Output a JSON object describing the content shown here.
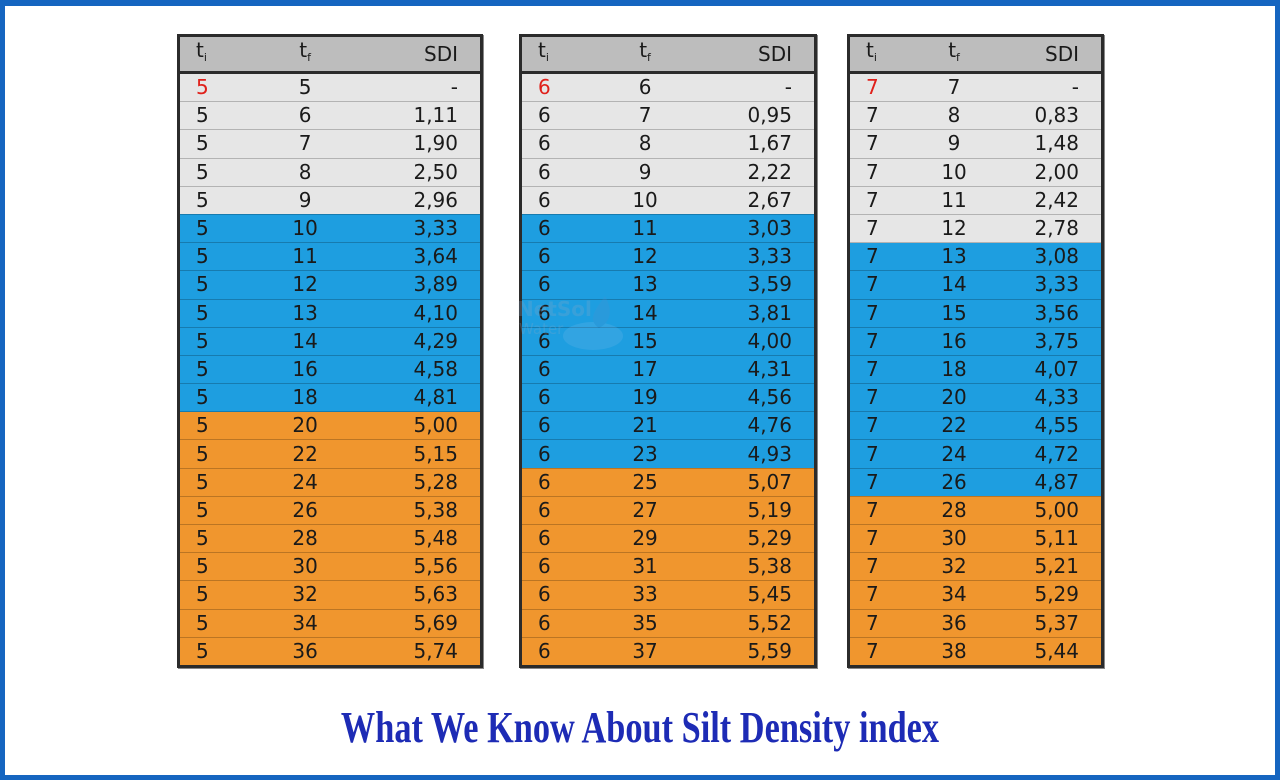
{
  "headers": {
    "ti": "t",
    "ti_sub": "i",
    "tf": "t",
    "tf_sub": "f",
    "sdi": "SDI"
  },
  "colors": {
    "grey": "#e6e6e6",
    "blue": "#1e9ee0",
    "orange": "#f0962e",
    "header": "#bdbdbd",
    "title": "#1d2bb5",
    "frame": "#1565c0",
    "highlight_text": "#e0201a"
  },
  "tables": [
    {
      "rows": [
        {
          "ti": "5",
          "tf": "5",
          "sdi": "-",
          "band": "grey",
          "red": true
        },
        {
          "ti": "5",
          "tf": "6",
          "sdi": "1,11",
          "band": "grey"
        },
        {
          "ti": "5",
          "tf": "7",
          "sdi": "1,90",
          "band": "grey"
        },
        {
          "ti": "5",
          "tf": "8",
          "sdi": "2,50",
          "band": "grey"
        },
        {
          "ti": "5",
          "tf": "9",
          "sdi": "2,96",
          "band": "grey"
        },
        {
          "ti": "5",
          "tf": "10",
          "sdi": "3,33",
          "band": "blue"
        },
        {
          "ti": "5",
          "tf": "11",
          "sdi": "3,64",
          "band": "blue"
        },
        {
          "ti": "5",
          "tf": "12",
          "sdi": "3,89",
          "band": "blue"
        },
        {
          "ti": "5",
          "tf": "13",
          "sdi": "4,10",
          "band": "blue"
        },
        {
          "ti": "5",
          "tf": "14",
          "sdi": "4,29",
          "band": "blue"
        },
        {
          "ti": "5",
          "tf": "16",
          "sdi": "4,58",
          "band": "blue"
        },
        {
          "ti": "5",
          "tf": "18",
          "sdi": "4,81",
          "band": "blue"
        },
        {
          "ti": "5",
          "tf": "20",
          "sdi": "5,00",
          "band": "orange"
        },
        {
          "ti": "5",
          "tf": "22",
          "sdi": "5,15",
          "band": "orange"
        },
        {
          "ti": "5",
          "tf": "24",
          "sdi": "5,28",
          "band": "orange"
        },
        {
          "ti": "5",
          "tf": "26",
          "sdi": "5,38",
          "band": "orange"
        },
        {
          "ti": "5",
          "tf": "28",
          "sdi": "5,48",
          "band": "orange"
        },
        {
          "ti": "5",
          "tf": "30",
          "sdi": "5,56",
          "band": "orange"
        },
        {
          "ti": "5",
          "tf": "32",
          "sdi": "5,63",
          "band": "orange"
        },
        {
          "ti": "5",
          "tf": "34",
          "sdi": "5,69",
          "band": "orange"
        },
        {
          "ti": "5",
          "tf": "36",
          "sdi": "5,74",
          "band": "orange"
        }
      ]
    },
    {
      "rows": [
        {
          "ti": "6",
          "tf": "6",
          "sdi": "-",
          "band": "grey",
          "red": true
        },
        {
          "ti": "6",
          "tf": "7",
          "sdi": "0,95",
          "band": "grey"
        },
        {
          "ti": "6",
          "tf": "8",
          "sdi": "1,67",
          "band": "grey"
        },
        {
          "ti": "6",
          "tf": "9",
          "sdi": "2,22",
          "band": "grey"
        },
        {
          "ti": "6",
          "tf": "10",
          "sdi": "2,67",
          "band": "grey"
        },
        {
          "ti": "6",
          "tf": "11",
          "sdi": "3,03",
          "band": "blue"
        },
        {
          "ti": "6",
          "tf": "12",
          "sdi": "3,33",
          "band": "blue"
        },
        {
          "ti": "6",
          "tf": "13",
          "sdi": "3,59",
          "band": "blue"
        },
        {
          "ti": "6",
          "tf": "14",
          "sdi": "3,81",
          "band": "blue"
        },
        {
          "ti": "6",
          "tf": "15",
          "sdi": "4,00",
          "band": "blue"
        },
        {
          "ti": "6",
          "tf": "17",
          "sdi": "4,31",
          "band": "blue"
        },
        {
          "ti": "6",
          "tf": "19",
          "sdi": "4,56",
          "band": "blue"
        },
        {
          "ti": "6",
          "tf": "21",
          "sdi": "4,76",
          "band": "blue"
        },
        {
          "ti": "6",
          "tf": "23",
          "sdi": "4,93",
          "band": "blue"
        },
        {
          "ti": "6",
          "tf": "25",
          "sdi": "5,07",
          "band": "orange"
        },
        {
          "ti": "6",
          "tf": "27",
          "sdi": "5,19",
          "band": "orange"
        },
        {
          "ti": "6",
          "tf": "29",
          "sdi": "5,29",
          "band": "orange"
        },
        {
          "ti": "6",
          "tf": "31",
          "sdi": "5,38",
          "band": "orange"
        },
        {
          "ti": "6",
          "tf": "33",
          "sdi": "5,45",
          "band": "orange"
        },
        {
          "ti": "6",
          "tf": "35",
          "sdi": "5,52",
          "band": "orange"
        },
        {
          "ti": "6",
          "tf": "37",
          "sdi": "5,59",
          "band": "orange"
        }
      ]
    },
    {
      "rows": [
        {
          "ti": "7",
          "tf": "7",
          "sdi": "-",
          "band": "grey",
          "red": true
        },
        {
          "ti": "7",
          "tf": "8",
          "sdi": "0,83",
          "band": "grey"
        },
        {
          "ti": "7",
          "tf": "9",
          "sdi": "1,48",
          "band": "grey"
        },
        {
          "ti": "7",
          "tf": "10",
          "sdi": "2,00",
          "band": "grey"
        },
        {
          "ti": "7",
          "tf": "11",
          "sdi": "2,42",
          "band": "grey"
        },
        {
          "ti": "7",
          "tf": "12",
          "sdi": "2,78",
          "band": "grey"
        },
        {
          "ti": "7",
          "tf": "13",
          "sdi": "3,08",
          "band": "blue"
        },
        {
          "ti": "7",
          "tf": "14",
          "sdi": "3,33",
          "band": "blue"
        },
        {
          "ti": "7",
          "tf": "15",
          "sdi": "3,56",
          "band": "blue"
        },
        {
          "ti": "7",
          "tf": "16",
          "sdi": "3,75",
          "band": "blue"
        },
        {
          "ti": "7",
          "tf": "18",
          "sdi": "4,07",
          "band": "blue"
        },
        {
          "ti": "7",
          "tf": "20",
          "sdi": "4,33",
          "band": "blue"
        },
        {
          "ti": "7",
          "tf": "22",
          "sdi": "4,55",
          "band": "blue"
        },
        {
          "ti": "7",
          "tf": "24",
          "sdi": "4,72",
          "band": "blue"
        },
        {
          "ti": "7",
          "tf": "26",
          "sdi": "4,87",
          "band": "blue"
        },
        {
          "ti": "7",
          "tf": "28",
          "sdi": "5,00",
          "band": "orange"
        },
        {
          "ti": "7",
          "tf": "30",
          "sdi": "5,11",
          "band": "orange"
        },
        {
          "ti": "7",
          "tf": "32",
          "sdi": "5,21",
          "band": "orange"
        },
        {
          "ti": "7",
          "tf": "34",
          "sdi": "5,29",
          "band": "orange"
        },
        {
          "ti": "7",
          "tf": "36",
          "sdi": "5,37",
          "band": "orange"
        },
        {
          "ti": "7",
          "tf": "38",
          "sdi": "5,44",
          "band": "orange"
        }
      ]
    }
  ],
  "watermark": {
    "line1": "NetSol",
    "line2": "Water",
    "icon": "water-drop-logo"
  },
  "title": "What We Know About Silt Density index"
}
